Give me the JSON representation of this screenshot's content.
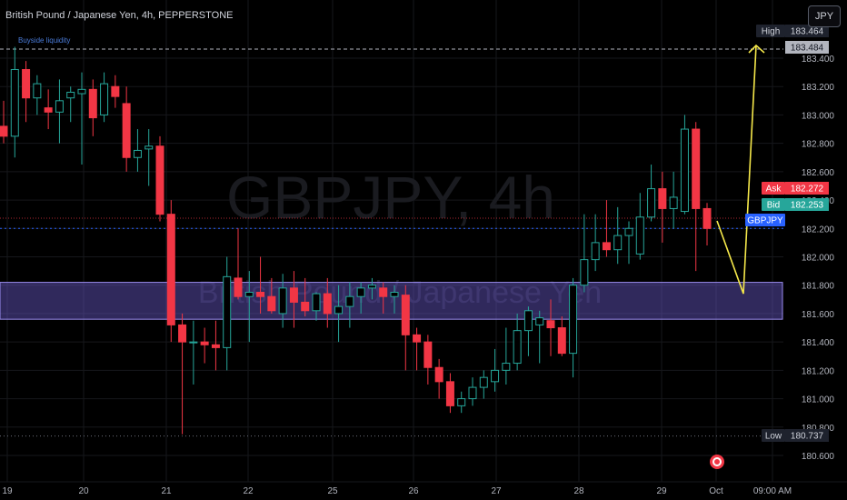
{
  "header": {
    "title": "British Pound / Japanese Yen, 4h, PEPPERSTONE",
    "currency_button": "JPY"
  },
  "watermark": {
    "symbol": "GBPJPY, 4h",
    "name": "British Pound / Japanese Yen"
  },
  "annotations": {
    "buyside_label": "Buyside liquidity"
  },
  "price_tags": {
    "high": {
      "label": "High",
      "value": "183.464",
      "line_value": 183.464
    },
    "high_marker": {
      "value": "183.484"
    },
    "ask": {
      "label": "Ask",
      "value": "182.272",
      "line_value": 182.272
    },
    "bid": {
      "label": "Bid",
      "value": "182.253",
      "line_value": 182.253
    },
    "symbol": {
      "label": "GBPJPY",
      "line_value": 182.2
    },
    "low": {
      "label": "Low",
      "value": "180.737",
      "line_value": 180.737
    }
  },
  "zone": {
    "top": 181.82,
    "bottom": 181.56
  },
  "colors": {
    "bullish": "#26a69a",
    "bearish": "#f23645",
    "background": "#000000",
    "zone": "#6a5acd",
    "projection": "#f5e84a",
    "ask": "#f23645",
    "bid": "#26a69a",
    "symbol_tag": "#2962ff"
  },
  "icons": {
    "live": "record-icon"
  },
  "chart_data": {
    "type": "candlestick",
    "title": "British Pound / Japanese Yen, 4h, PEPPERSTONE",
    "price_axis_labels": [
      "183.400",
      "183.200",
      "183.000",
      "182.800",
      "182.600",
      "182.400",
      "182.200",
      "182.000",
      "181.800",
      "181.600",
      "181.400",
      "181.200",
      "181.000",
      "180.800",
      "180.600"
    ],
    "ylim": [
      180.52,
      183.62
    ],
    "date_labels": [
      "19",
      "20",
      "21",
      "22",
      "25",
      "26",
      "27",
      "28",
      "29",
      "Oct",
      "09:00 AM"
    ],
    "grid": true,
    "candles": [
      {
        "o": 182.92,
        "h": 183.1,
        "l": 182.8,
        "c": 182.85
      },
      {
        "o": 182.85,
        "h": 183.48,
        "l": 182.7,
        "c": 183.32
      },
      {
        "o": 183.32,
        "h": 183.38,
        "l": 182.95,
        "c": 183.12
      },
      {
        "o": 183.12,
        "h": 183.28,
        "l": 183.0,
        "c": 183.22
      },
      {
        "o": 183.05,
        "h": 183.18,
        "l": 182.9,
        "c": 183.02
      },
      {
        "o": 183.02,
        "h": 183.25,
        "l": 182.8,
        "c": 183.1
      },
      {
        "o": 183.12,
        "h": 183.2,
        "l": 182.95,
        "c": 183.16
      },
      {
        "o": 183.15,
        "h": 183.3,
        "l": 182.65,
        "c": 183.18
      },
      {
        "o": 183.18,
        "h": 183.25,
        "l": 182.85,
        "c": 182.98
      },
      {
        "o": 183.0,
        "h": 183.3,
        "l": 182.95,
        "c": 183.22
      },
      {
        "o": 183.2,
        "h": 183.28,
        "l": 183.05,
        "c": 183.13
      },
      {
        "o": 183.08,
        "h": 183.2,
        "l": 182.6,
        "c": 182.7
      },
      {
        "o": 182.7,
        "h": 182.9,
        "l": 182.6,
        "c": 182.75
      },
      {
        "o": 182.76,
        "h": 182.9,
        "l": 182.5,
        "c": 182.78
      },
      {
        "o": 182.78,
        "h": 182.85,
        "l": 182.25,
        "c": 182.3
      },
      {
        "o": 182.3,
        "h": 182.4,
        "l": 181.4,
        "c": 181.52
      },
      {
        "o": 181.52,
        "h": 181.6,
        "l": 180.75,
        "c": 181.4
      },
      {
        "o": 181.4,
        "h": 181.55,
        "l": 181.1,
        "c": 181.4
      },
      {
        "o": 181.4,
        "h": 181.5,
        "l": 181.25,
        "c": 181.38
      },
      {
        "o": 181.38,
        "h": 181.55,
        "l": 181.2,
        "c": 181.36
      },
      {
        "o": 181.36,
        "h": 182.0,
        "l": 181.2,
        "c": 181.86
      },
      {
        "o": 181.85,
        "h": 182.2,
        "l": 181.7,
        "c": 181.72
      },
      {
        "o": 181.72,
        "h": 181.9,
        "l": 181.4,
        "c": 181.75
      },
      {
        "o": 181.75,
        "h": 182.0,
        "l": 181.6,
        "c": 181.72
      },
      {
        "o": 181.72,
        "h": 181.85,
        "l": 181.6,
        "c": 181.62
      },
      {
        "o": 181.6,
        "h": 181.88,
        "l": 181.5,
        "c": 181.78
      },
      {
        "o": 181.78,
        "h": 181.9,
        "l": 181.5,
        "c": 181.68
      },
      {
        "o": 181.68,
        "h": 181.85,
        "l": 181.58,
        "c": 181.62
      },
      {
        "o": 181.62,
        "h": 181.75,
        "l": 181.55,
        "c": 181.74
      },
      {
        "o": 181.74,
        "h": 181.85,
        "l": 181.5,
        "c": 181.6
      },
      {
        "o": 181.6,
        "h": 181.8,
        "l": 181.4,
        "c": 181.65
      },
      {
        "o": 181.65,
        "h": 181.82,
        "l": 181.5,
        "c": 181.72
      },
      {
        "o": 181.72,
        "h": 181.82,
        "l": 181.6,
        "c": 181.78
      },
      {
        "o": 181.78,
        "h": 181.85,
        "l": 181.7,
        "c": 181.8
      },
      {
        "o": 181.78,
        "h": 181.82,
        "l": 181.6,
        "c": 181.72
      },
      {
        "o": 181.72,
        "h": 181.8,
        "l": 181.6,
        "c": 181.75
      },
      {
        "o": 181.73,
        "h": 181.8,
        "l": 181.2,
        "c": 181.45
      },
      {
        "o": 181.45,
        "h": 181.5,
        "l": 181.2,
        "c": 181.4
      },
      {
        "o": 181.4,
        "h": 181.45,
        "l": 181.1,
        "c": 181.22
      },
      {
        "o": 181.22,
        "h": 181.28,
        "l": 181.0,
        "c": 181.12
      },
      {
        "o": 181.12,
        "h": 181.18,
        "l": 180.9,
        "c": 180.95
      },
      {
        "o": 180.95,
        "h": 181.05,
        "l": 180.9,
        "c": 181.0
      },
      {
        "o": 181.0,
        "h": 181.15,
        "l": 180.95,
        "c": 181.08
      },
      {
        "o": 181.08,
        "h": 181.2,
        "l": 181.0,
        "c": 181.15
      },
      {
        "o": 181.12,
        "h": 181.35,
        "l": 181.05,
        "c": 181.2
      },
      {
        "o": 181.2,
        "h": 181.5,
        "l": 181.1,
        "c": 181.25
      },
      {
        "o": 181.25,
        "h": 181.6,
        "l": 181.2,
        "c": 181.48
      },
      {
        "o": 181.48,
        "h": 181.65,
        "l": 181.3,
        "c": 181.62
      },
      {
        "o": 181.52,
        "h": 181.62,
        "l": 181.25,
        "c": 181.57
      },
      {
        "o": 181.55,
        "h": 181.7,
        "l": 181.3,
        "c": 181.5
      },
      {
        "o": 181.5,
        "h": 181.58,
        "l": 181.3,
        "c": 181.32
      },
      {
        "o": 181.32,
        "h": 181.85,
        "l": 181.15,
        "c": 181.8
      },
      {
        "o": 181.8,
        "h": 182.3,
        "l": 181.75,
        "c": 181.98
      },
      {
        "o": 181.98,
        "h": 182.3,
        "l": 181.9,
        "c": 182.1
      },
      {
        "o": 182.1,
        "h": 182.4,
        "l": 182.0,
        "c": 182.05
      },
      {
        "o": 182.05,
        "h": 182.35,
        "l": 181.95,
        "c": 182.15
      },
      {
        "o": 182.15,
        "h": 182.25,
        "l": 181.95,
        "c": 182.2
      },
      {
        "o": 182.02,
        "h": 182.45,
        "l": 181.98,
        "c": 182.28
      },
      {
        "o": 182.28,
        "h": 182.65,
        "l": 182.25,
        "c": 182.48
      },
      {
        "o": 182.48,
        "h": 182.6,
        "l": 182.1,
        "c": 182.34
      },
      {
        "o": 182.34,
        "h": 182.6,
        "l": 182.2,
        "c": 182.42
      },
      {
        "o": 182.32,
        "h": 183.0,
        "l": 182.3,
        "c": 182.9
      },
      {
        "o": 182.9,
        "h": 182.95,
        "l": 181.9,
        "c": 182.34
      },
      {
        "o": 182.34,
        "h": 182.38,
        "l": 182.08,
        "c": 182.2
      }
    ]
  }
}
